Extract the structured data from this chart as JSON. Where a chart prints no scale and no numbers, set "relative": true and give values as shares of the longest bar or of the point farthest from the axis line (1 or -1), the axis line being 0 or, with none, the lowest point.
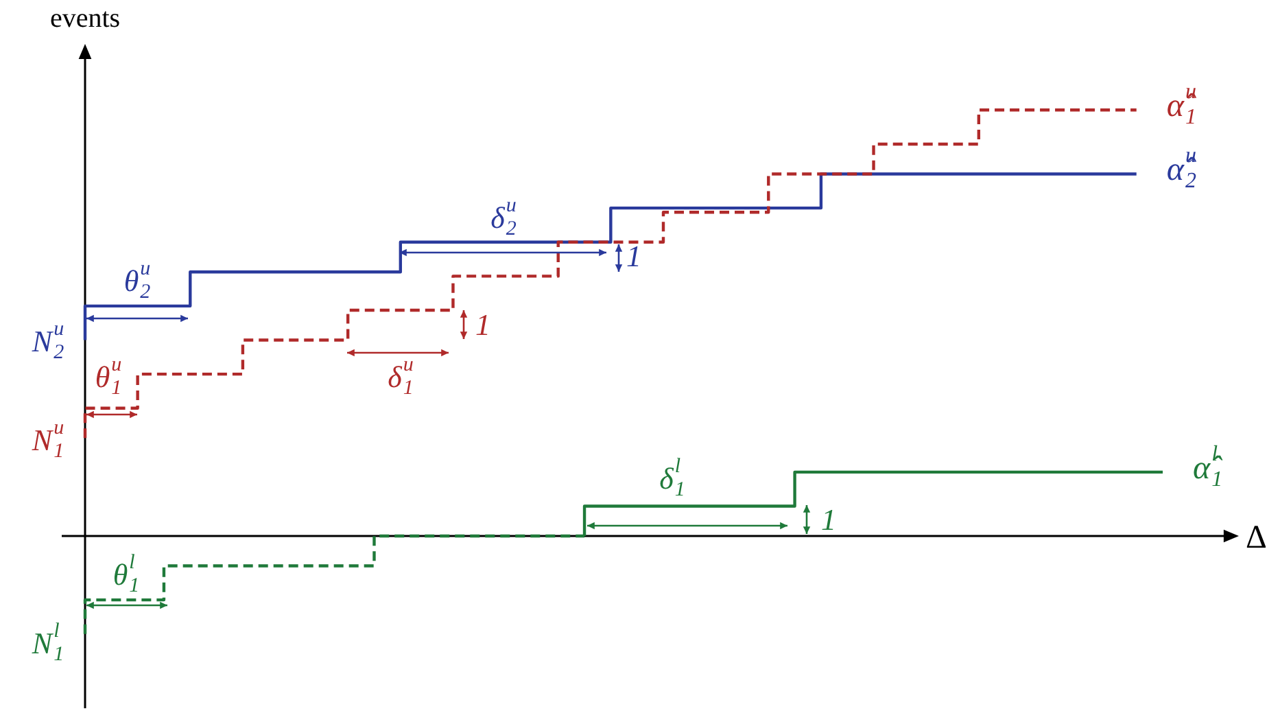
{
  "chart_data": {
    "type": "step",
    "relative": true,
    "xlabel": "Δ",
    "ylabel": "events",
    "legend": false,
    "categories": [
      null,
      null,
      null,
      null,
      null,
      null,
      null,
      null,
      null,
      null,
      null,
      null,
      null,
      null,
      null,
      null,
      null,
      null,
      null,
      null,
      null,
      null,
      null,
      null,
      null,
      null,
      null,
      null,
      null,
      null,
      null,
      null,
      null,
      null,
      null,
      null,
      null,
      null,
      null,
      null,
      null,
      null,
      null,
      null,
      null
    ],
    "series": [
      {
        "name": "α̂$^{u}$$_{1}$",
        "color": "#b02a2a",
        "line_style": "dashed",
        "values": [
          0.23,
          null,
          0.3,
          null,
          null,
          null,
          0.38,
          null,
          null,
          null,
          0.46,
          null,
          null,
          null,
          0.53,
          null,
          null,
          null,
          0.61,
          null,
          null,
          null,
          0.69,
          null,
          null,
          null,
          0.76,
          null,
          null,
          null,
          0.85,
          null,
          null,
          null,
          0.92,
          null,
          null,
          null,
          1.0,
          null,
          1.0,
          null,
          null,
          null,
          null
        ]
      },
      {
        "name": "α̂$^{u}$$_{2}$",
        "color": "#2a3a9c",
        "line_style": "solid",
        "values": [
          0.46,
          null,
          null,
          null,
          0.54,
          null,
          null,
          null,
          null,
          null,
          null,
          null,
          0.62,
          null,
          null,
          null,
          null,
          null,
          null,
          null,
          0.69,
          null,
          null,
          null,
          null,
          null,
          null,
          null,
          0.77,
          null,
          null,
          null,
          null,
          null,
          null,
          null,
          0.85,
          null,
          null,
          null,
          0.85,
          null,
          null,
          null,
          null
        ]
      },
      {
        "color": "#1f7a3a",
        "line_style": "dashed",
        "values": [
          -0.23,
          null,
          null,
          -0.15,
          null,
          null,
          null,
          null,
          null,
          null,
          null,
          -0.07,
          null,
          null,
          null,
          null,
          null,
          null,
          null,
          0,
          null,
          null,
          null,
          null,
          null,
          null,
          null,
          null,
          null,
          null,
          null,
          null,
          null,
          null,
          null,
          null,
          null,
          null,
          null,
          null,
          null,
          null,
          null,
          null,
          null
        ]
      },
      {
        "name": "α̂$^{l}$$_{1}$",
        "color": "#1f7a3a",
        "line_style": "solid",
        "values": [
          null,
          null,
          null,
          null,
          null,
          null,
          null,
          null,
          null,
          null,
          null,
          null,
          null,
          null,
          null,
          null,
          null,
          null,
          null,
          0,
          null,
          null,
          null,
          null,
          null,
          null,
          null,
          0.07,
          null,
          null,
          null,
          null,
          null,
          null,
          null,
          0.15,
          null,
          null,
          null,
          null,
          null,
          0.15,
          null,
          null,
          null
        ]
      }
    ],
    "annotations": [
      "θ$^{u}$$_{2}$",
      "δ$^{u}$$_{2}$",
      "N$^{u}$$_{2}$",
      "θ$^{u}$$_{1}$",
      "N$^{u}$$_{1}$",
      "δ$^{u}$$_{1}$",
      "1",
      "1",
      "1",
      "δ$^{l}$$_{1}$",
      "θ$^{l}$$_{1}$",
      "N$^{l}$$_{1}$"
    ]
  }
}
